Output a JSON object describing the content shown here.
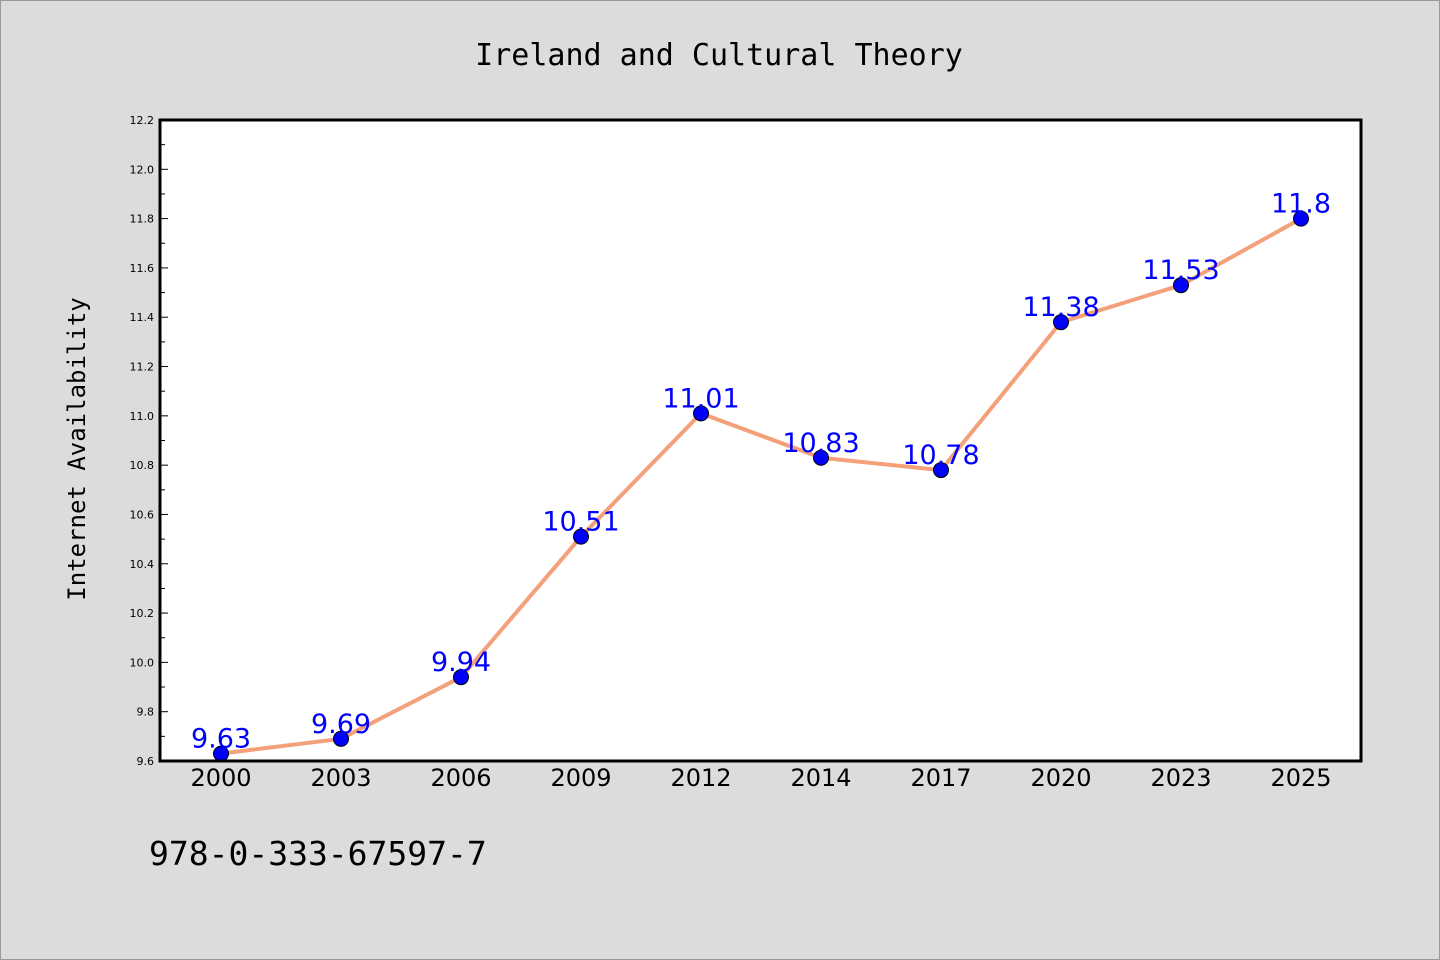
{
  "chart_data": {
    "type": "line",
    "title": "Ireland and Cultural Theory",
    "xlabel": "",
    "ylabel": "Internet Availability",
    "categories": [
      "2000",
      "2003",
      "2006",
      "2009",
      "2012",
      "2014",
      "2017",
      "2020",
      "2023",
      "2025"
    ],
    "values": [
      9.63,
      9.69,
      9.94,
      10.51,
      11.01,
      10.83,
      10.78,
      11.38,
      11.53,
      11.8
    ],
    "data_labels": [
      "9.63",
      "9.69",
      "9.94",
      "10.51",
      "11.01",
      "10.83",
      "10.78",
      "11.38",
      "11.53",
      "11.8"
    ],
    "ylim": [
      9.6,
      12.2
    ],
    "yticks": [
      "9.6",
      "9.8",
      "10.0",
      "10.2",
      "10.4",
      "10.6",
      "10.8",
      "11.0",
      "11.2",
      "11.4",
      "11.6",
      "11.8",
      "12.0",
      "12.2"
    ],
    "grid": false,
    "legend": "none",
    "colors": {
      "line": "#f4a07a",
      "marker": "#0000ff",
      "data_label": "#0000ff",
      "background": "#dcdcdc",
      "plot_area": "#ffffff"
    }
  },
  "footer": {
    "isbn": "978-0-333-67597-7"
  }
}
